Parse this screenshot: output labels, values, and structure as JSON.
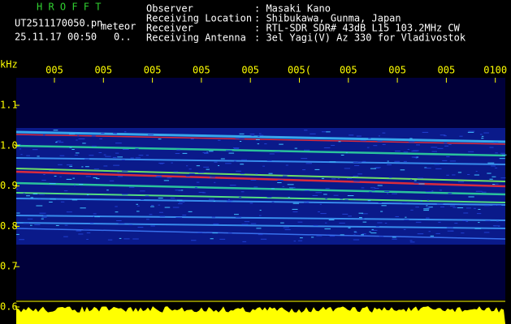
{
  "header": {
    "brand": "H R O F F T",
    "file": "UT2511170050.pn",
    "mode": "meteor",
    "datetime": "25.11.17 00:50",
    "extra": "0..",
    "info": [
      {
        "label": "Observer",
        "value": ": Masaki Kano"
      },
      {
        "label": "Receiving Location",
        "value": ": Shibukawa, Gunma, Japan"
      },
      {
        "label": "Receiver",
        "value": ": RTL-SDR SDR# 43dB L15 103.2MHz CW"
      },
      {
        "label": "Receiving Antenna",
        "value": ": 3el Yagi(V) Az 330 for Vladivostok"
      }
    ]
  },
  "plot": {
    "y_unit": "kHz",
    "y_ticks": [
      "1.1",
      "1.0",
      "0.9",
      "0.8",
      "0.7",
      "0.6"
    ],
    "x_ticks": [
      "005",
      "005",
      "005",
      "005",
      "005",
      "005(",
      "005",
      "005",
      "005",
      "0100"
    ]
  }
}
